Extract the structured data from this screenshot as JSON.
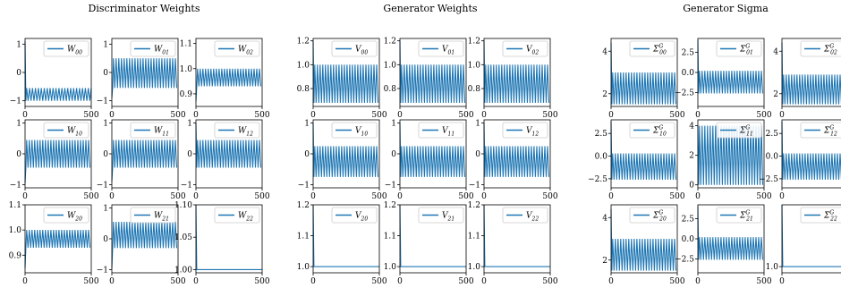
{
  "groups": [
    {
      "title": "Discriminator Weights",
      "panels": [
        {
          "label": "W00",
          "base": "W",
          "sub": "00",
          "sup": "",
          "kind": "osc",
          "ylim": [
            -1.2,
            1.2
          ],
          "yticks": [
            {
              "v": 1,
              "t": "1"
            },
            {
              "v": 0,
              "t": "0"
            },
            {
              "v": -1,
              "t": "−1"
            }
          ],
          "start": 1.1,
          "low": -1.0,
          "high": -0.55,
          "cycles": 22
        },
        {
          "label": "W01",
          "base": "W",
          "sub": "01",
          "sup": "",
          "kind": "osc",
          "ylim": [
            -1.2,
            1.2
          ],
          "yticks": [
            {
              "v": 1,
              "t": "1"
            },
            {
              "v": 0,
              "t": "0"
            },
            {
              "v": -1,
              "t": "−1"
            }
          ],
          "start": -0.9,
          "low": -0.55,
          "high": 0.5,
          "cycles": 24
        },
        {
          "label": "W02",
          "base": "W",
          "sub": "02",
          "sup": "",
          "kind": "osc",
          "ylim": [
            0.85,
            1.12
          ],
          "yticks": [
            {
              "v": 1.1,
              "t": "1.1"
            },
            {
              "v": 1.0,
              "t": "1.0"
            },
            {
              "v": 0.9,
              "t": "0.9"
            }
          ],
          "start": 0.87,
          "low": 0.93,
          "high": 1.0,
          "cycles": 24
        },
        {
          "label": "W10",
          "base": "W",
          "sub": "10",
          "sup": "",
          "kind": "osc",
          "ylim": [
            -1.1,
            1.1
          ],
          "yticks": [
            {
              "v": 1,
              "t": "1"
            },
            {
              "v": 0,
              "t": "0"
            },
            {
              "v": -1,
              "t": "−1"
            }
          ],
          "start": -0.95,
          "low": -0.45,
          "high": 0.45,
          "cycles": 24
        },
        {
          "label": "W11",
          "base": "W",
          "sub": "11",
          "sup": "",
          "kind": "osc",
          "ylim": [
            -1.1,
            1.1
          ],
          "yticks": [
            {
              "v": 1,
              "t": "1"
            },
            {
              "v": 0,
              "t": "0"
            },
            {
              "v": -1,
              "t": "−1"
            }
          ],
          "start": -0.9,
          "low": -0.45,
          "high": 0.45,
          "cycles": 24
        },
        {
          "label": "W12",
          "base": "W",
          "sub": "12",
          "sup": "",
          "kind": "osc",
          "ylim": [
            -1.1,
            1.1
          ],
          "yticks": [
            {
              "v": 1,
              "t": "1"
            },
            {
              "v": 0,
              "t": "0"
            },
            {
              "v": -1,
              "t": "−1"
            }
          ],
          "start": 1.0,
          "low": -0.45,
          "high": 0.45,
          "cycles": 24
        },
        {
          "label": "W20",
          "base": "W",
          "sub": "20",
          "sup": "",
          "kind": "osc",
          "ylim": [
            0.83,
            1.1
          ],
          "yticks": [
            {
              "v": 1.1,
              "t": "1.1"
            },
            {
              "v": 1.0,
              "t": "1.0"
            },
            {
              "v": 0.9,
              "t": "0.9"
            }
          ],
          "start": 0.85,
          "low": 0.93,
          "high": 1.0,
          "cycles": 24
        },
        {
          "label": "W21",
          "base": "W",
          "sub": "21",
          "sup": "",
          "kind": "osc",
          "ylim": [
            -1.1,
            1.1
          ],
          "yticks": [
            {
              "v": 1,
              "t": "1"
            },
            {
              "v": 0,
              "t": "0"
            },
            {
              "v": -1,
              "t": "−1"
            }
          ],
          "start": -0.95,
          "low": -0.3,
          "high": 0.55,
          "cycles": 24
        },
        {
          "label": "W22",
          "base": "W",
          "sub": "22",
          "sup": "",
          "kind": "flat",
          "ylim": [
            0.995,
            1.1
          ],
          "yticks": [
            {
              "v": 1.1,
              "t": "1.10"
            },
            {
              "v": 1.05,
              "t": "1.05"
            },
            {
              "v": 1.0,
              "t": "1.00"
            }
          ],
          "start": 1.1,
          "low": 1.0,
          "high": 1.0,
          "cycles": 0
        }
      ]
    },
    {
      "title": "Generator Weights",
      "panels": [
        {
          "label": "V00",
          "base": "V",
          "sub": "00",
          "sup": "",
          "kind": "osc",
          "ylim": [
            0.65,
            1.22
          ],
          "yticks": [
            {
              "v": 1.2,
              "t": "1.2"
            },
            {
              "v": 1.0,
              "t": "1.0"
            },
            {
              "v": 0.8,
              "t": "0.8"
            }
          ],
          "start": 1.2,
          "low": 0.68,
          "high": 1.0,
          "cycles": 24
        },
        {
          "label": "V01",
          "base": "V",
          "sub": "01",
          "sup": "",
          "kind": "osc",
          "ylim": [
            0.65,
            1.22
          ],
          "yticks": [
            {
              "v": 1.2,
              "t": "1.2"
            },
            {
              "v": 1.0,
              "t": "1.0"
            },
            {
              "v": 0.8,
              "t": "0.8"
            }
          ],
          "start": 1.2,
          "low": 0.68,
          "high": 1.0,
          "cycles": 24
        },
        {
          "label": "V02",
          "base": "V",
          "sub": "02",
          "sup": "",
          "kind": "osc",
          "ylim": [
            0.65,
            1.22
          ],
          "yticks": [
            {
              "v": 1.2,
              "t": "1.2"
            },
            {
              "v": 1.0,
              "t": "1.0"
            },
            {
              "v": 0.8,
              "t": "0.8"
            }
          ],
          "start": 1.2,
          "low": 0.68,
          "high": 1.0,
          "cycles": 24
        },
        {
          "label": "V10",
          "base": "V",
          "sub": "10",
          "sup": "",
          "kind": "osc",
          "ylim": [
            -1.1,
            1.1
          ],
          "yticks": [
            {
              "v": 1,
              "t": "1"
            },
            {
              "v": 0,
              "t": "0"
            },
            {
              "v": -1,
              "t": "−1"
            }
          ],
          "start": 1.0,
          "low": -0.75,
          "high": 0.25,
          "cycles": 24
        },
        {
          "label": "V11",
          "base": "V",
          "sub": "11",
          "sup": "",
          "kind": "osc",
          "ylim": [
            -1.1,
            1.1
          ],
          "yticks": [
            {
              "v": 1,
              "t": "1"
            },
            {
              "v": 0,
              "t": "0"
            },
            {
              "v": -1,
              "t": "−1"
            }
          ],
          "start": 1.0,
          "low": -0.75,
          "high": 0.25,
          "cycles": 24
        },
        {
          "label": "V12",
          "base": "V",
          "sub": "12",
          "sup": "",
          "kind": "osc",
          "ylim": [
            -1.1,
            1.1
          ],
          "yticks": [
            {
              "v": 1,
              "t": "1"
            },
            {
              "v": 0,
              "t": "0"
            },
            {
              "v": -1,
              "t": "−1"
            }
          ],
          "start": 1.0,
          "low": -0.75,
          "high": 0.25,
          "cycles": 24
        },
        {
          "label": "V20",
          "base": "V",
          "sub": "20",
          "sup": "",
          "kind": "flat",
          "ylim": [
            0.98,
            1.2
          ],
          "yticks": [
            {
              "v": 1.2,
              "t": "1.2"
            },
            {
              "v": 1.1,
              "t": "1.1"
            },
            {
              "v": 1.0,
              "t": "1.0"
            }
          ],
          "start": 1.2,
          "low": 1.0,
          "high": 1.0,
          "cycles": 0
        },
        {
          "label": "V21",
          "base": "V",
          "sub": "21",
          "sup": "",
          "kind": "flat",
          "ylim": [
            0.98,
            1.2
          ],
          "yticks": [
            {
              "v": 1.2,
              "t": "1.2"
            },
            {
              "v": 1.1,
              "t": "1.1"
            },
            {
              "v": 1.0,
              "t": "1.0"
            }
          ],
          "start": 1.2,
          "low": 1.0,
          "high": 1.0,
          "cycles": 0
        },
        {
          "label": "V22",
          "base": "V",
          "sub": "22",
          "sup": "",
          "kind": "flat",
          "ylim": [
            0.98,
            1.2
          ],
          "yticks": [
            {
              "v": 1.2,
              "t": "1.2"
            },
            {
              "v": 1.1,
              "t": "1.1"
            },
            {
              "v": 1.0,
              "t": "1.0"
            }
          ],
          "start": 1.2,
          "low": 1.0,
          "high": 1.0,
          "cycles": 0
        }
      ]
    },
    {
      "title": "Generator Sigma",
      "panels": [
        {
          "label": "ΣG00",
          "base": "Σ",
          "sub": "00",
          "sup": "G",
          "kind": "osc",
          "ylim": [
            1.4,
            4.6
          ],
          "yticks": [
            {
              "v": 4,
              "t": "4"
            },
            {
              "v": 2,
              "t": "2"
            }
          ],
          "start": 4.4,
          "low": 1.5,
          "high": 3.0,
          "cycles": 24
        },
        {
          "label": "ΣG01",
          "base": "Σ",
          "sub": "01",
          "sup": "G",
          "kind": "osc",
          "ylim": [
            -4.2,
            4.2
          ],
          "yticks": [
            {
              "v": 2.5,
              "t": "2.5"
            },
            {
              "v": 0,
              "t": "0.0"
            },
            {
              "v": -2.5,
              "t": "−2.5"
            }
          ],
          "start": 4.0,
          "low": -2.6,
          "high": 0.2,
          "cycles": 24
        },
        {
          "label": "ΣG02",
          "base": "Σ",
          "sub": "02",
          "sup": "G",
          "kind": "osc",
          "ylim": [
            1.4,
            4.6
          ],
          "yticks": [
            {
              "v": 4,
              "t": "4"
            },
            {
              "v": 2,
              "t": "2"
            }
          ],
          "start": 4.4,
          "low": 1.5,
          "high": 2.9,
          "cycles": 24
        },
        {
          "label": "ΣG10",
          "base": "Σ",
          "sub": "10",
          "sup": "G",
          "kind": "osc",
          "ylim": [
            -3.5,
            4.0
          ],
          "yticks": [
            {
              "v": 2.5,
              "t": "2.5"
            },
            {
              "v": 0,
              "t": "0.0"
            },
            {
              "v": -2.5,
              "t": "−2.5"
            }
          ],
          "start": 3.8,
          "low": -2.6,
          "high": 0.3,
          "cycles": 24
        },
        {
          "label": "ΣG11",
          "base": "Σ",
          "sub": "11",
          "sup": "G",
          "kind": "osc",
          "ylim": [
            -0.2,
            4.4
          ],
          "yticks": [
            {
              "v": 4,
              "t": "4"
            },
            {
              "v": 2,
              "t": "2"
            },
            {
              "v": 0,
              "t": "0"
            }
          ],
          "start": 4.0,
          "low": 0.0,
          "high": 4.0,
          "cycles": 24
        },
        {
          "label": "ΣG12",
          "base": "Σ",
          "sub": "12",
          "sup": "G",
          "kind": "osc",
          "ylim": [
            -3.5,
            4.0
          ],
          "yticks": [
            {
              "v": 2.5,
              "t": "2.5"
            },
            {
              "v": 0,
              "t": "0.0"
            },
            {
              "v": -2.5,
              "t": "−2.5"
            }
          ],
          "start": 3.8,
          "low": -2.6,
          "high": 0.3,
          "cycles": 24
        },
        {
          "label": "ΣG20",
          "base": "Σ",
          "sub": "20",
          "sup": "G",
          "kind": "osc",
          "ylim": [
            1.4,
            4.6
          ],
          "yticks": [
            {
              "v": 4,
              "t": "4"
            },
            {
              "v": 2,
              "t": "2"
            }
          ],
          "start": 4.4,
          "low": 1.5,
          "high": 3.0,
          "cycles": 24
        },
        {
          "label": "ΣG21",
          "base": "Σ",
          "sub": "21",
          "sup": "G",
          "kind": "osc",
          "ylim": [
            -4.2,
            4.2
          ],
          "yticks": [
            {
              "v": 2.5,
              "t": "2.5"
            },
            {
              "v": 0,
              "t": "0.0"
            },
            {
              "v": -2.5,
              "t": "−2.5"
            }
          ],
          "start": 4.0,
          "low": -2.6,
          "high": 0.2,
          "cycles": 24
        },
        {
          "label": "ΣG22",
          "base": "Σ",
          "sub": "22",
          "sup": "G",
          "kind": "flat",
          "ylim": [
            0.98,
            1.2
          ],
          "yticks": [
            {
              "v": 1.0,
              "t": "1.0"
            }
          ],
          "start": 1.2,
          "low": 1.0,
          "high": 1.0,
          "cycles": 0
        }
      ]
    }
  ],
  "chart_data": {
    "type": "line",
    "x_range": [
      0,
      500
    ],
    "x_ticks": [
      "0",
      "500"
    ],
    "line_color": "#1f77b4",
    "grid": false,
    "legend_placement": "top-right",
    "titles": [
      "Discriminator Weights",
      "Generator Weights",
      "Generator Sigma"
    ],
    "series": [
      {
        "name": "W00",
        "initial": 1.1,
        "band": [
          -1.0,
          -0.55
        ]
      },
      {
        "name": "W01",
        "initial": -0.9,
        "band": [
          -0.55,
          0.5
        ]
      },
      {
        "name": "W02",
        "initial": 0.87,
        "band": [
          0.93,
          1.0
        ]
      },
      {
        "name": "W10",
        "initial": -0.95,
        "band": [
          -0.45,
          0.45
        ]
      },
      {
        "name": "W11",
        "initial": -0.9,
        "band": [
          -0.45,
          0.45
        ]
      },
      {
        "name": "W12",
        "initial": 1.0,
        "band": [
          -0.45,
          0.45
        ]
      },
      {
        "name": "W20",
        "initial": 0.85,
        "band": [
          0.93,
          1.0
        ]
      },
      {
        "name": "W21",
        "initial": -0.95,
        "band": [
          -0.3,
          0.55
        ]
      },
      {
        "name": "W22",
        "initial": 1.1,
        "band": [
          1.0,
          1.0
        ]
      },
      {
        "name": "V00",
        "initial": 1.2,
        "band": [
          0.68,
          1.0
        ]
      },
      {
        "name": "V01",
        "initial": 1.2,
        "band": [
          0.68,
          1.0
        ]
      },
      {
        "name": "V02",
        "initial": 1.2,
        "band": [
          0.68,
          1.0
        ]
      },
      {
        "name": "V10",
        "initial": 1.0,
        "band": [
          -0.75,
          0.25
        ]
      },
      {
        "name": "V11",
        "initial": 1.0,
        "band": [
          -0.75,
          0.25
        ]
      },
      {
        "name": "V12",
        "initial": 1.0,
        "band": [
          -0.75,
          0.25
        ]
      },
      {
        "name": "V20",
        "initial": 1.2,
        "band": [
          1.0,
          1.0
        ]
      },
      {
        "name": "V21",
        "initial": 1.2,
        "band": [
          1.0,
          1.0
        ]
      },
      {
        "name": "V22",
        "initial": 1.2,
        "band": [
          1.0,
          1.0
        ]
      },
      {
        "name": "ΣG00",
        "initial": 4.4,
        "band": [
          1.5,
          3.0
        ]
      },
      {
        "name": "ΣG01",
        "initial": 4.0,
        "band": [
          -2.6,
          0.2
        ]
      },
      {
        "name": "ΣG02",
        "initial": 4.4,
        "band": [
          1.5,
          2.9
        ]
      },
      {
        "name": "ΣG10",
        "initial": 3.8,
        "band": [
          -2.6,
          0.3
        ]
      },
      {
        "name": "ΣG11",
        "initial": 4.0,
        "band": [
          0.0,
          4.0
        ]
      },
      {
        "name": "ΣG12",
        "initial": 3.8,
        "band": [
          -2.6,
          0.3
        ]
      },
      {
        "name": "ΣG20",
        "initial": 4.4,
        "band": [
          1.5,
          3.0
        ]
      },
      {
        "name": "ΣG21",
        "initial": 4.0,
        "band": [
          -2.6,
          0.2
        ]
      },
      {
        "name": "ΣG22",
        "initial": 1.2,
        "band": [
          1.0,
          1.0
        ]
      }
    ]
  }
}
